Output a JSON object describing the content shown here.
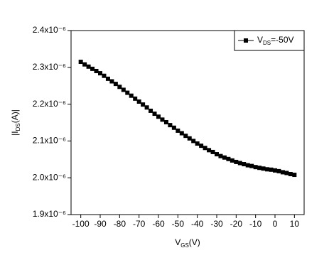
{
  "chart_data": {
    "type": "line",
    "x_label": [
      {
        "text": "V"
      },
      {
        "text": "GS",
        "sub": true
      },
      {
        "text": "(V)"
      }
    ],
    "y_label": [
      {
        "text": "|I"
      },
      {
        "text": "DS",
        "sub": true
      },
      {
        "text": "(A)|"
      }
    ],
    "x": [
      -100,
      -98,
      -96,
      -94,
      -92,
      -90,
      -88,
      -86,
      -84,
      -82,
      -80,
      -78,
      -76,
      -74,
      -72,
      -70,
      -68,
      -66,
      -64,
      -62,
      -60,
      -58,
      -56,
      -54,
      -52,
      -50,
      -48,
      -46,
      -44,
      -42,
      -40,
      -38,
      -36,
      -34,
      -32,
      -30,
      -28,
      -26,
      -24,
      -22,
      -20,
      -18,
      -16,
      -14,
      -12,
      -10,
      -8,
      -6,
      -4,
      -2,
      0,
      2,
      4,
      6,
      8,
      10
    ],
    "series": [
      {
        "name": [
          {
            "text": "V"
          },
          {
            "text": "DS",
            "sub": true
          },
          {
            "text": "=-50V"
          }
        ],
        "color": "#000000",
        "values": [
          2.315e-06,
          2.308e-06,
          2.302e-06,
          2.296e-06,
          2.29e-06,
          2.284e-06,
          2.277e-06,
          2.269e-06,
          2.262e-06,
          2.255e-06,
          2.247e-06,
          2.239e-06,
          2.231e-06,
          2.223e-06,
          2.215e-06,
          2.207e-06,
          2.199e-06,
          2.191e-06,
          2.182e-06,
          2.174e-06,
          2.166e-06,
          2.158e-06,
          2.151e-06,
          2.143e-06,
          2.136e-06,
          2.128e-06,
          2.121e-06,
          2.114e-06,
          2.107e-06,
          2.1e-06,
          2.093e-06,
          2.087e-06,
          2.081e-06,
          2.075e-06,
          2.07e-06,
          2.064e-06,
          2.059e-06,
          2.055e-06,
          2.051e-06,
          2.047e-06,
          2.043e-06,
          2.04e-06,
          2.037e-06,
          2.034e-06,
          2.032e-06,
          2.029e-06,
          2.027e-06,
          2.025e-06,
          2.023e-06,
          2.022e-06,
          2.02e-06,
          2.018e-06,
          2.015e-06,
          2.013e-06,
          2.01e-06,
          2.008e-06
        ]
      }
    ],
    "xlim": [
      -105,
      15
    ],
    "xticks": [
      -100,
      -90,
      -80,
      -70,
      -60,
      -50,
      -40,
      -30,
      -20,
      -10,
      0,
      10
    ],
    "ylim": [
      1.9e-06,
      2.4e-06
    ],
    "yticks": [
      {
        "value": 1.9e-06,
        "label": "1.9x10⁻⁶"
      },
      {
        "value": 2e-06,
        "label": "2.0x10⁻⁶"
      },
      {
        "value": 2.1e-06,
        "label": "2.1x10⁻⁶"
      },
      {
        "value": 2.2e-06,
        "label": "2.2x10⁻⁶"
      },
      {
        "value": 2.3e-06,
        "label": "2.3x10⁻⁶"
      },
      {
        "value": 2.4e-06,
        "label": "2.4x10⁻⁶"
      }
    ],
    "legend": "upper right"
  }
}
